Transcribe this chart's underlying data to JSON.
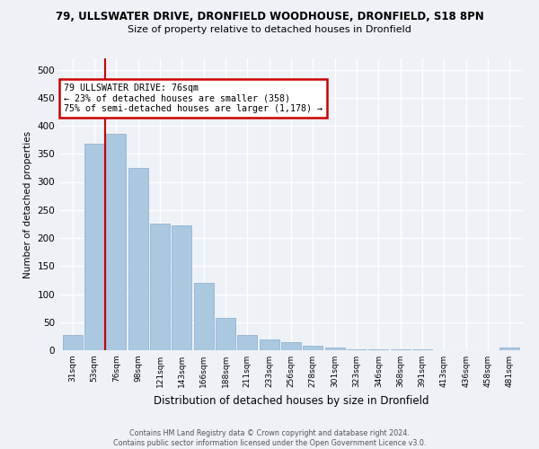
{
  "title1": "79, ULLSWATER DRIVE, DRONFIELD WOODHOUSE, DRONFIELD, S18 8PN",
  "title2": "Size of property relative to detached houses in Dronfield",
  "xlabel": "Distribution of detached houses by size in Dronfield",
  "ylabel": "Number of detached properties",
  "categories": [
    "31sqm",
    "53sqm",
    "76sqm",
    "98sqm",
    "121sqm",
    "143sqm",
    "166sqm",
    "188sqm",
    "211sqm",
    "233sqm",
    "256sqm",
    "278sqm",
    "301sqm",
    "323sqm",
    "346sqm",
    "368sqm",
    "391sqm",
    "413sqm",
    "436sqm",
    "458sqm",
    "481sqm"
  ],
  "values": [
    28,
    368,
    385,
    325,
    225,
    223,
    120,
    58,
    28,
    20,
    15,
    8,
    5,
    2,
    1,
    1,
    1,
    0,
    0,
    0,
    5
  ],
  "bar_color": "#aac8e0",
  "bar_edge_color": "#88aacc",
  "red_line_x": 1.5,
  "annotation_text": "79 ULLSWATER DRIVE: 76sqm\n← 23% of detached houses are smaller (358)\n75% of semi-detached houses are larger (1,178) →",
  "annotation_box_color": "#ffffff",
  "annotation_box_edge": "#cc0000",
  "ylim": [
    0,
    520
  ],
  "yticks": [
    0,
    50,
    100,
    150,
    200,
    250,
    300,
    350,
    400,
    450,
    500
  ],
  "footnote1": "Contains HM Land Registry data © Crown copyright and database right 2024.",
  "footnote2": "Contains public sector information licensed under the Open Government Licence v3.0.",
  "bg_color": "#eef2f7",
  "grid_color": "#ffffff"
}
